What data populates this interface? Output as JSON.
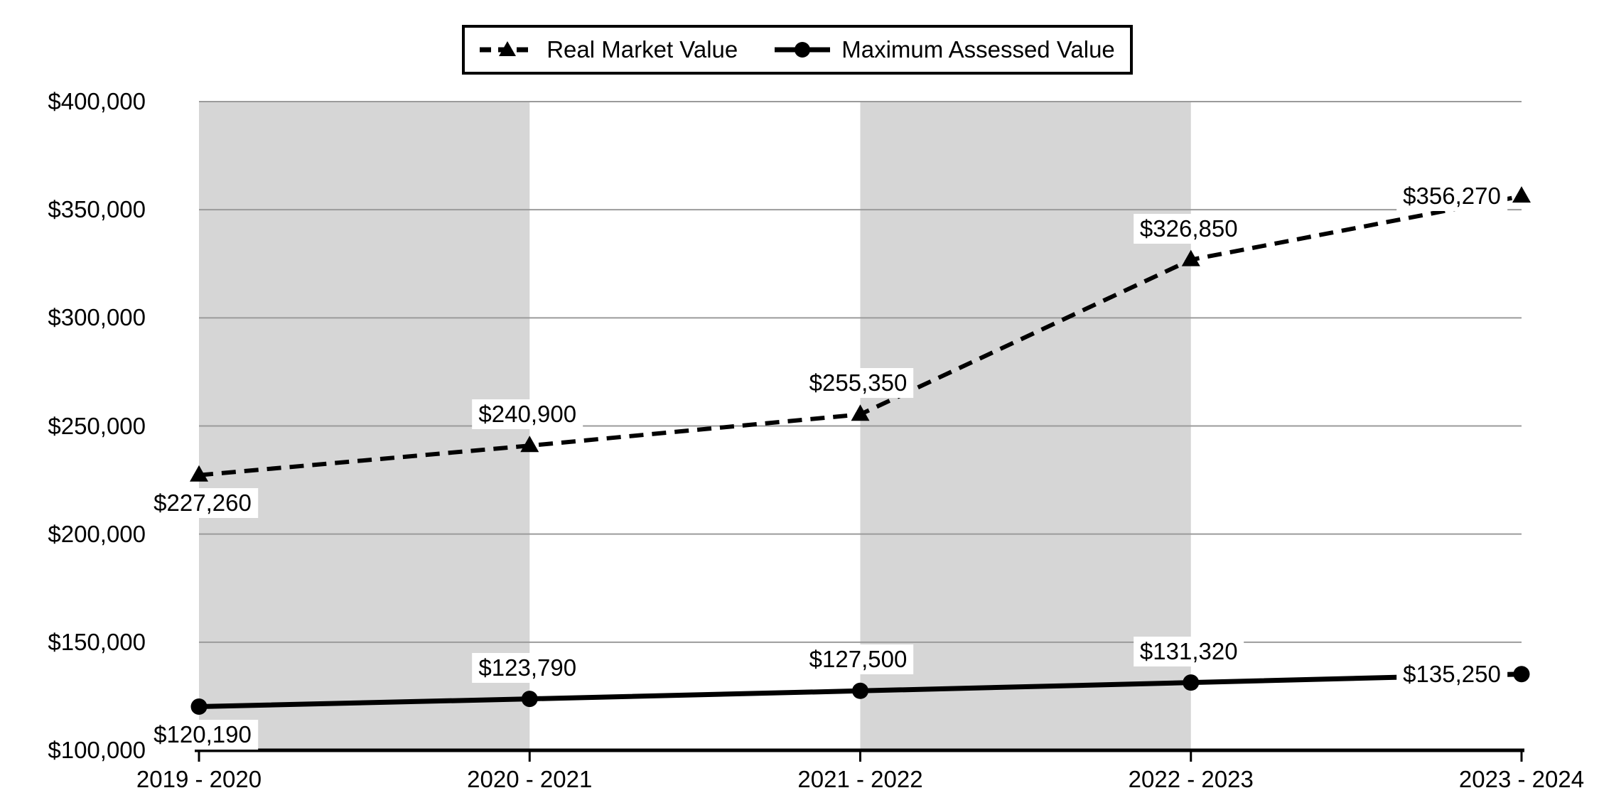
{
  "chart_data": {
    "type": "line",
    "title": "",
    "xlabel": "",
    "ylabel": "",
    "categories": [
      "2019 - 2020",
      "2020 - 2021",
      "2021 - 2022",
      "2022 - 2023",
      "2023 - 2024"
    ],
    "series": [
      {
        "name": "Real Market Value",
        "line_style": "dashed",
        "marker": "triangle",
        "color": "#000000",
        "values": [
          227260,
          240900,
          255350,
          326850,
          356270
        ],
        "labels": [
          "$227,260",
          "$240,900",
          "$255,350",
          "$326,850",
          "$356,270"
        ],
        "label_positions": [
          "below",
          "above",
          "above",
          "above",
          "left"
        ]
      },
      {
        "name": "Maximum Assessed Value",
        "line_style": "solid",
        "marker": "circle",
        "color": "#000000",
        "values": [
          120190,
          123790,
          127500,
          131320,
          135250
        ],
        "labels": [
          "$120,190",
          "$123,790",
          "$127,500",
          "$131,320",
          "$135,250"
        ],
        "label_positions": [
          "below",
          "above",
          "above",
          "above",
          "left"
        ]
      }
    ],
    "y_ticks": [
      {
        "label": "$400,000",
        "value": 400000
      },
      {
        "label": "$350,000",
        "value": 350000
      },
      {
        "label": "$300,000",
        "value": 300000
      },
      {
        "label": "$250,000",
        "value": 250000
      },
      {
        "label": "$200,000",
        "value": 200000
      },
      {
        "label": "$150,000",
        "value": 150000
      },
      {
        "label": "$100,000",
        "value": 100000
      }
    ],
    "ylim": [
      100000,
      400000
    ],
    "grid": "horizontal",
    "shaded_column_pairs": [
      [
        0,
        1
      ],
      [
        2,
        3
      ]
    ],
    "legend": {
      "position": "top-center",
      "border": true
    },
    "colors": {
      "background": "#ffffff",
      "shaded_band": "#d6d6d6",
      "gridline": "#9b9b9b",
      "axis": "#000000",
      "text": "#000000"
    }
  }
}
